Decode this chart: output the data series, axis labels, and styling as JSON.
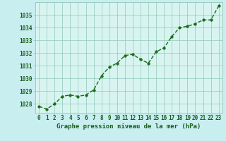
{
  "x": [
    0,
    1,
    2,
    3,
    4,
    5,
    6,
    7,
    8,
    9,
    10,
    11,
    12,
    13,
    14,
    15,
    16,
    17,
    18,
    19,
    20,
    21,
    22,
    23
  ],
  "y": [
    1027.8,
    1027.6,
    1028.0,
    1028.6,
    1028.7,
    1028.6,
    1028.7,
    1029.1,
    1030.2,
    1030.9,
    1031.2,
    1031.8,
    1031.9,
    1031.5,
    1031.2,
    1032.1,
    1032.4,
    1033.3,
    1034.0,
    1034.1,
    1034.3,
    1034.6,
    1034.6,
    1035.7
  ],
  "line_color": "#1a6b1a",
  "marker": "o",
  "markersize": 2.5,
  "linewidth": 1.0,
  "linestyle": "--",
  "bg_color": "#c8eef0",
  "plot_bg_color": "#d8f4f0",
  "grid_color": "#90c8b8",
  "xlabel": "Graphe pression niveau de la mer (hPa)",
  "xlabel_fontsize": 6.5,
  "xlabel_color": "#1a5c1a",
  "tick_label_color": "#1a5c1a",
  "tick_label_fontsize": 5.5,
  "ylim": [
    1027.3,
    1036.0
  ],
  "yticks": [
    1028,
    1029,
    1030,
    1031,
    1032,
    1033,
    1034,
    1035
  ],
  "xlim": [
    -0.5,
    23.5
  ],
  "xticks": [
    0,
    1,
    2,
    3,
    4,
    5,
    6,
    7,
    8,
    9,
    10,
    11,
    12,
    13,
    14,
    15,
    16,
    17,
    18,
    19,
    20,
    21,
    22,
    23
  ]
}
